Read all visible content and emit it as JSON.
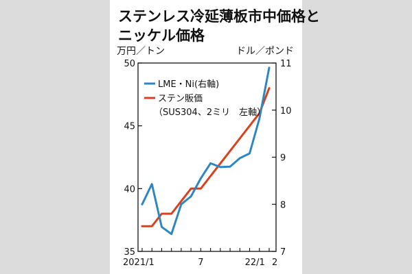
{
  "chart_data": {
    "type": "line",
    "title_lines": [
      "ステンレス冷延薄板市中価格と",
      "ニッケル価格"
    ],
    "left_axis_label": "万円／トン",
    "right_axis_label": "ドル／ポンド",
    "x_tick_labels": [
      "2021/1",
      "7",
      "22/1",
      "2"
    ],
    "x": [
      "2021/1",
      "2021/2",
      "2021/3",
      "2021/4",
      "2021/5",
      "2021/6",
      "2021/7",
      "2021/8",
      "2021/9",
      "2021/10",
      "2021/11",
      "2021/12",
      "2022/1",
      "2022/2"
    ],
    "left_axis": {
      "ticks": [
        35,
        40,
        45,
        50
      ],
      "ylim": [
        35,
        50
      ]
    },
    "right_axis": {
      "ticks": [
        7,
        8,
        9,
        10,
        11
      ],
      "ylim": [
        7,
        11
      ]
    },
    "series": [
      {
        "name": "LME・Ni(右軸)",
        "axis": "right",
        "color": "#2e86c1",
        "values": [
          8.0,
          8.43,
          7.52,
          7.37,
          8.0,
          8.17,
          8.55,
          8.87,
          8.79,
          8.8,
          8.98,
          9.08,
          9.82,
          10.9
        ]
      },
      {
        "name": "ステン販価",
        "name_line2": "（SUS304、2ミリ　左軸）",
        "axis": "left",
        "color": "#d9401b",
        "values": [
          37.0,
          37.0,
          38.0,
          38.0,
          39.0,
          40.0,
          40.0,
          41.0,
          42.0,
          43.0,
          44.0,
          45.0,
          46.0,
          48.0
        ]
      }
    ],
    "grid": false,
    "legend": "top-left"
  }
}
